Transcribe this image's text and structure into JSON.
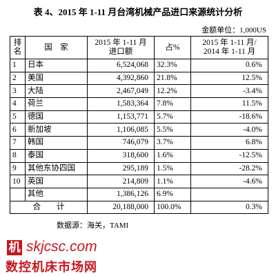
{
  "header": {
    "title": "表 4、2015 年 1-11 月台湾机械产品进口来源统计分析",
    "unit": "金额单位：1,000US"
  },
  "table": {
    "columns": [
      "排名",
      "国　家",
      "2015 年 1-11 月\n进口额",
      "占%",
      "2015 年 1-11 月/\n2014 年 1-11 月"
    ],
    "rows": [
      {
        "rank": "1",
        "country": "日本",
        "value": "6,524,068",
        "share": "32.3%",
        "growth": "0.6%"
      },
      {
        "rank": "2",
        "country": "美国",
        "value": "4,392,860",
        "share": "21.8%",
        "growth": "12.5%"
      },
      {
        "rank": "3",
        "country": "大陆",
        "value": "2,467,049",
        "share": "12.2%",
        "growth": "-3.4%"
      },
      {
        "rank": "4",
        "country": "荷兰",
        "value": "1,583,364",
        "share": "7.8%",
        "growth": "11.5%"
      },
      {
        "rank": "5",
        "country": "德国",
        "value": "1,153,771",
        "share": "5.7%",
        "growth": "-18.6%"
      },
      {
        "rank": "6",
        "country": "新加坡",
        "value": "1,106,085",
        "share": "5.5%",
        "growth": "-4.0%"
      },
      {
        "rank": "7",
        "country": "韩国",
        "value": "746,079",
        "share": "3.7%",
        "growth": "6.8%"
      },
      {
        "rank": "8",
        "country": "泰国",
        "value": "318,600",
        "share": "1.6%",
        "growth": "-12.5%"
      },
      {
        "rank": "9",
        "country": "其他东协四国",
        "value": "295,189",
        "share": "1.5%",
        "growth": "-28.2%"
      },
      {
        "rank": "10",
        "country": "英国",
        "value": "214,809",
        "share": "1.1%",
        "growth": "-4.6%"
      },
      {
        "country": "其他",
        "value": "1,386,126",
        "share": "6.9%"
      }
    ],
    "total": {
      "label": "合　　计",
      "value": "20,188,000",
      "share": "100.0%",
      "growth": "0.3%"
    }
  },
  "source": "数据源：海关，TAMI",
  "watermark": {
    "logo": "机",
    "url": "skjcsc.com",
    "name": "数控机床市场网"
  }
}
